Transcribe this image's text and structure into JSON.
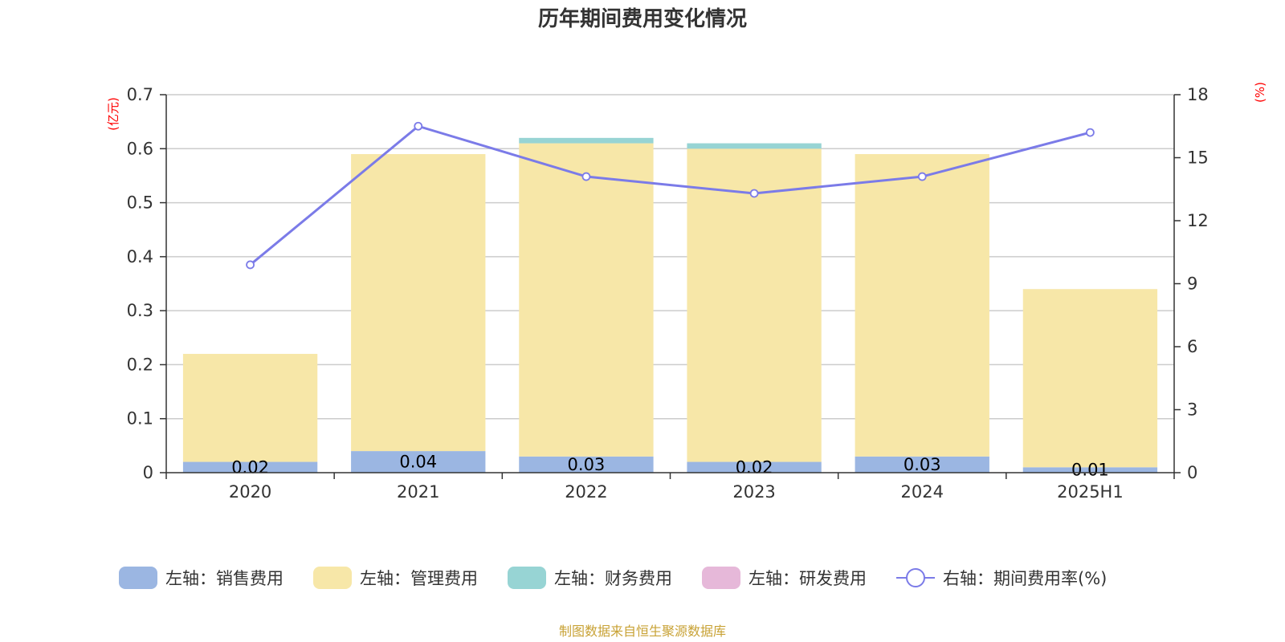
{
  "chart_data": {
    "type": "bar",
    "stacked": true,
    "title": "历年期间费用变化情况",
    "categories": [
      "2020",
      "2021",
      "2022",
      "2023",
      "2024",
      "2025H1"
    ],
    "left_axis": {
      "unit": "(亿元)",
      "ylim": [
        0,
        0.7
      ],
      "ticks": [
        "0",
        "0.1",
        "0.2",
        "0.3",
        "0.4",
        "0.5",
        "0.6",
        "0.7"
      ]
    },
    "right_axis": {
      "unit": "(%)",
      "ylim": [
        0,
        18
      ],
      "ticks": [
        "0",
        "3",
        "6",
        "9",
        "12",
        "15",
        "18"
      ]
    },
    "series": [
      {
        "name": "左轴：销售费用",
        "axis": "left",
        "color": "#9bb6e2",
        "values": [
          0.02,
          0.04,
          0.03,
          0.02,
          0.03,
          0.01
        ],
        "labels": [
          "0.02",
          "0.04",
          "0.03",
          "0.02",
          "0.03",
          "0.01"
        ]
      },
      {
        "name": "左轴：管理费用",
        "axis": "left",
        "color": "#f7e7a8",
        "values": [
          0.2,
          0.55,
          0.58,
          0.58,
          0.56,
          0.33
        ]
      },
      {
        "name": "左轴：财务费用",
        "axis": "left",
        "color": "#97d4d4",
        "values": [
          0,
          0,
          0.01,
          0.01,
          0,
          0
        ]
      },
      {
        "name": "左轴：研发费用",
        "axis": "left",
        "color": "#e6b8d9",
        "values": [
          0,
          0,
          0,
          0,
          0,
          0
        ]
      },
      {
        "name": "右轴：期间费用率(%)",
        "axis": "right",
        "type": "line",
        "color": "#7b7be8",
        "values": [
          9.9,
          16.5,
          14.1,
          13.3,
          14.1,
          16.2
        ]
      }
    ],
    "source": "制图数据来自恒生聚源数据库"
  }
}
